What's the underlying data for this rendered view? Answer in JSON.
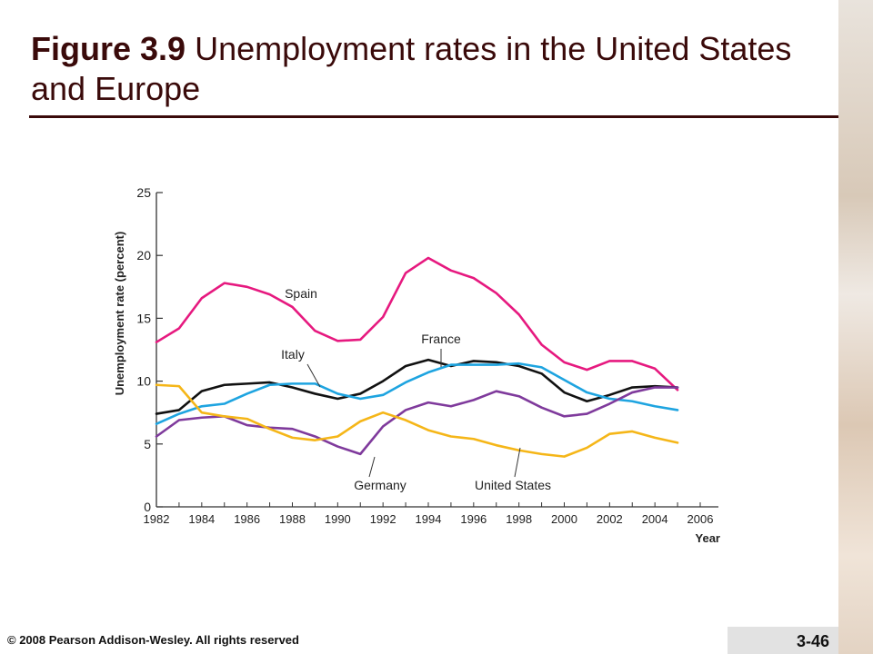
{
  "slide": {
    "title_bold": "Figure 3.9",
    "title_rest": " Unemployment rates in the United States and Europe",
    "footer": "© 2008 Pearson Addison-Wesley. All rights reserved",
    "page_number": "3-46"
  },
  "chart_data": {
    "type": "line",
    "ylabel": "Unemployment rate (percent)",
    "xlabel": "Year",
    "xlim": [
      1982,
      2006
    ],
    "ylim": [
      0,
      25
    ],
    "xticks": [
      1982,
      1984,
      1986,
      1988,
      1990,
      1992,
      1994,
      1996,
      1998,
      2000,
      2002,
      2004,
      2006
    ],
    "yticks": [
      0,
      5,
      10,
      15,
      20,
      25
    ],
    "grid": false,
    "x": [
      1982,
      1983,
      1984,
      1985,
      1986,
      1987,
      1988,
      1989,
      1990,
      1991,
      1992,
      1993,
      1994,
      1995,
      1996,
      1997,
      1998,
      1999,
      2000,
      2001,
      2002,
      2003,
      2004,
      2005
    ],
    "series": [
      {
        "name": "Spain",
        "color": "#e6197f",
        "values": [
          13.1,
          14.2,
          16.6,
          17.8,
          17.5,
          16.9,
          15.9,
          14.0,
          13.2,
          13.3,
          15.1,
          18.6,
          19.8,
          18.8,
          18.2,
          17.0,
          15.3,
          12.9,
          11.5,
          10.9,
          11.6,
          11.6,
          11.0,
          9.3
        ]
      },
      {
        "name": "France",
        "color": "#111111",
        "values": [
          7.4,
          7.7,
          9.2,
          9.7,
          9.8,
          9.9,
          9.5,
          9.0,
          8.6,
          9.0,
          10.0,
          11.2,
          11.7,
          11.2,
          11.6,
          11.5,
          11.2,
          10.6,
          9.1,
          8.4,
          8.9,
          9.5,
          9.6,
          9.5
        ]
      },
      {
        "name": "Italy",
        "color": "#1ea4e0",
        "values": [
          6.6,
          7.4,
          8.0,
          8.2,
          9.0,
          9.7,
          9.8,
          9.8,
          9.0,
          8.6,
          8.9,
          9.9,
          10.7,
          11.3,
          11.3,
          11.3,
          11.4,
          11.1,
          10.1,
          9.1,
          8.6,
          8.4,
          8.0,
          7.7
        ]
      },
      {
        "name": "Germany",
        "color": "#7f3a9c",
        "values": [
          5.6,
          6.9,
          7.1,
          7.2,
          6.5,
          6.3,
          6.2,
          5.6,
          4.8,
          4.2,
          6.4,
          7.7,
          8.3,
          8.0,
          8.5,
          9.2,
          8.8,
          7.9,
          7.2,
          7.4,
          8.2,
          9.1,
          9.5,
          9.5
        ]
      },
      {
        "name": "United States",
        "color": "#f5b618",
        "values": [
          9.7,
          9.6,
          7.5,
          7.2,
          7.0,
          6.2,
          5.5,
          5.3,
          5.6,
          6.8,
          7.5,
          6.9,
          6.1,
          5.6,
          5.4,
          4.9,
          4.5,
          4.2,
          4.0,
          4.7,
          5.8,
          6.0,
          5.5,
          5.1
        ]
      }
    ],
    "annotations": [
      {
        "series": "Spain",
        "text": "Spain"
      },
      {
        "series": "France",
        "text": "France"
      },
      {
        "series": "Italy",
        "text": "Italy"
      },
      {
        "series": "Germany",
        "text": "Germany"
      },
      {
        "series": "United States",
        "text": "United States"
      }
    ]
  }
}
